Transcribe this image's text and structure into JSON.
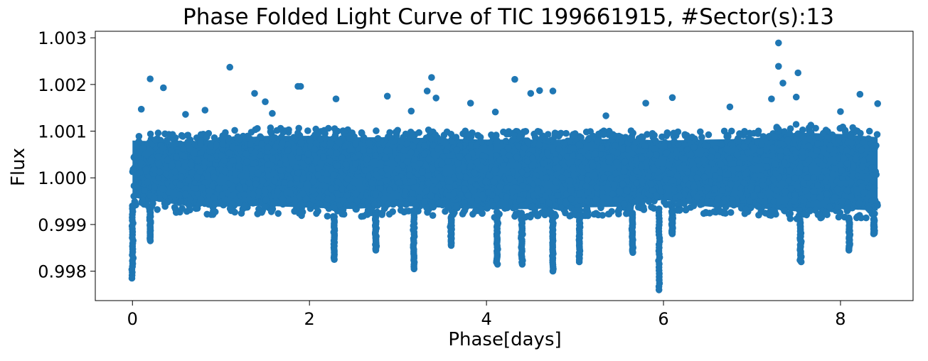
{
  "chart_data": {
    "type": "scatter",
    "title": "Phase Folded Light Curve of TIC 199661915, #Sector(s):13",
    "xlabel": "Phase[days]",
    "ylabel": "Flux",
    "xlim": [
      -0.42,
      8.82
    ],
    "ylim": [
      0.99737,
      1.00314
    ],
    "xticks": [
      {
        "value": 0,
        "label": "0"
      },
      {
        "value": 2,
        "label": "2"
      },
      {
        "value": 4,
        "label": "4"
      },
      {
        "value": 6,
        "label": "6"
      },
      {
        "value": 8,
        "label": "8"
      }
    ],
    "yticks": [
      {
        "value": 0.998,
        "label": "0.998"
      },
      {
        "value": 0.999,
        "label": "0.999"
      },
      {
        "value": 1.0,
        "label": "1.000"
      },
      {
        "value": 1.001,
        "label": "1.001"
      },
      {
        "value": 1.002,
        "label": "1.002"
      },
      {
        "value": 1.003,
        "label": "1.003"
      }
    ],
    "grid": false,
    "marker_color": "#1f77b4",
    "series": [
      {
        "phase_range": [
          0.0,
          8.42
        ],
        "band": [
          {
            "x": 0.0,
            "y_low": 0.9994,
            "y_high": 1.00098
          },
          {
            "x": 0.5,
            "y_low": 0.99925,
            "y_high": 1.00095
          },
          {
            "x": 1.0,
            "y_low": 0.9992,
            "y_high": 1.001
          },
          {
            "x": 1.5,
            "y_low": 0.99922,
            "y_high": 1.00108
          },
          {
            "x": 2.0,
            "y_low": 0.99918,
            "y_high": 1.00108
          },
          {
            "x": 2.5,
            "y_low": 0.99915,
            "y_high": 1.00105
          },
          {
            "x": 3.0,
            "y_low": 0.99922,
            "y_high": 1.00105
          },
          {
            "x": 3.5,
            "y_low": 0.99918,
            "y_high": 1.00102
          },
          {
            "x": 4.0,
            "y_low": 0.99915,
            "y_high": 1.001
          },
          {
            "x": 4.5,
            "y_low": 0.99915,
            "y_high": 1.001
          },
          {
            "x": 5.0,
            "y_low": 0.99918,
            "y_high": 1.001
          },
          {
            "x": 5.5,
            "y_low": 0.9992,
            "y_high": 1.00102
          },
          {
            "x": 6.0,
            "y_low": 0.99935,
            "y_high": 1.00098
          },
          {
            "x": 6.5,
            "y_low": 0.9992,
            "y_high": 1.001
          },
          {
            "x": 7.0,
            "y_low": 0.99918,
            "y_high": 1.00102
          },
          {
            "x": 7.5,
            "y_low": 0.9991,
            "y_high": 1.00115
          },
          {
            "x": 8.0,
            "y_low": 0.99915,
            "y_high": 1.00112
          },
          {
            "x": 8.42,
            "y_low": 0.99912,
            "y_high": 1.00105
          }
        ],
        "dips": [
          {
            "x": 0.0,
            "y_min": 0.99785
          },
          {
            "x": 0.2,
            "y_min": 0.99865
          },
          {
            "x": 2.28,
            "y_min": 0.99825
          },
          {
            "x": 2.75,
            "y_min": 0.99845
          },
          {
            "x": 3.18,
            "y_min": 0.99805
          },
          {
            "x": 3.6,
            "y_min": 0.99855
          },
          {
            "x": 4.12,
            "y_min": 0.99815
          },
          {
            "x": 4.4,
            "y_min": 0.99815
          },
          {
            "x": 4.75,
            "y_min": 0.998
          },
          {
            "x": 5.05,
            "y_min": 0.9982
          },
          {
            "x": 5.65,
            "y_min": 0.9984
          },
          {
            "x": 5.95,
            "y_min": 0.9976
          },
          {
            "x": 6.1,
            "y_min": 0.9988
          },
          {
            "x": 7.55,
            "y_min": 0.9982
          },
          {
            "x": 8.1,
            "y_min": 0.99845
          },
          {
            "x": 8.38,
            "y_min": 0.9988
          }
        ],
        "outliers": [
          {
            "x": 0.1,
            "y": 1.00147
          },
          {
            "x": 0.2,
            "y": 1.00212
          },
          {
            "x": 0.35,
            "y": 1.00193
          },
          {
            "x": 1.1,
            "y": 1.00237
          },
          {
            "x": 1.38,
            "y": 1.00181
          },
          {
            "x": 1.5,
            "y": 1.00163
          },
          {
            "x": 1.87,
            "y": 1.00196
          },
          {
            "x": 1.9,
            "y": 1.00196
          },
          {
            "x": 2.3,
            "y": 1.00169
          },
          {
            "x": 2.88,
            "y": 1.00175
          },
          {
            "x": 3.33,
            "y": 1.00186
          },
          {
            "x": 3.38,
            "y": 1.00215
          },
          {
            "x": 3.43,
            "y": 1.00171
          },
          {
            "x": 3.82,
            "y": 1.0016
          },
          {
            "x": 4.32,
            "y": 1.00211
          },
          {
            "x": 4.5,
            "y": 1.00181
          },
          {
            "x": 4.6,
            "y": 1.00187
          },
          {
            "x": 4.75,
            "y": 1.00186
          },
          {
            "x": 5.8,
            "y": 1.0016
          },
          {
            "x": 6.1,
            "y": 1.00172
          },
          {
            "x": 7.22,
            "y": 1.00169
          },
          {
            "x": 7.3,
            "y": 1.00289
          },
          {
            "x": 7.3,
            "y": 1.00239
          },
          {
            "x": 7.35,
            "y": 1.00203
          },
          {
            "x": 7.52,
            "y": 1.00225
          },
          {
            "x": 7.5,
            "y": 1.00173
          },
          {
            "x": 8.22,
            "y": 1.00179
          },
          {
            "x": 8.42,
            "y": 1.00159
          },
          {
            "x": 0.6,
            "y": 1.00136
          },
          {
            "x": 0.82,
            "y": 1.00145
          },
          {
            "x": 1.58,
            "y": 1.00138
          },
          {
            "x": 3.15,
            "y": 1.00143
          },
          {
            "x": 4.1,
            "y": 1.00141
          },
          {
            "x": 5.35,
            "y": 1.00133
          },
          {
            "x": 6.75,
            "y": 1.00152
          },
          {
            "x": 8.0,
            "y": 1.00142
          }
        ]
      }
    ]
  }
}
